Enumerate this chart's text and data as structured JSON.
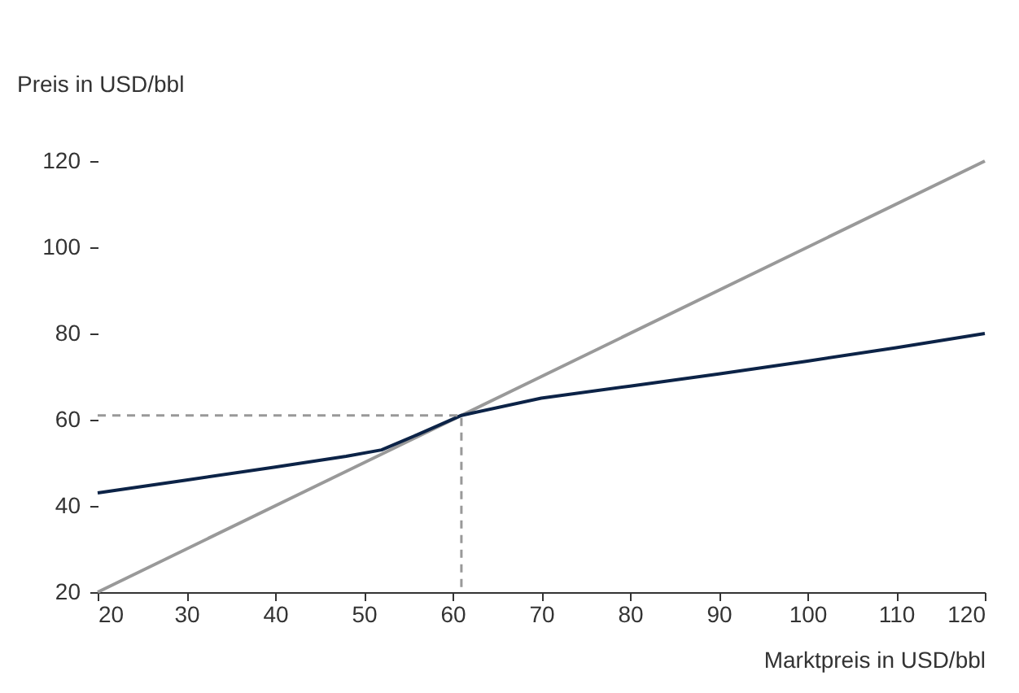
{
  "chart_data": {
    "type": "line",
    "ylabel": "Preis in USD/bbl",
    "xlabel": "Marktpreis in USD/bbl",
    "xlim": [
      20,
      120
    ],
    "xticks": [
      20,
      30,
      40,
      50,
      60,
      70,
      80,
      90,
      100,
      110,
      120
    ],
    "ylim": [
      20,
      120
    ],
    "yticks": [
      20,
      40,
      60,
      80,
      100,
      120
    ],
    "grid": false,
    "series": [
      {
        "color": "#999999",
        "x": [
          20,
          120
        ],
        "values": [
          20,
          120
        ]
      },
      {
        "color": "#0c2347",
        "x": [
          20,
          30,
          40,
          48,
          52,
          56,
          61,
          70,
          80,
          90,
          100,
          110,
          120
        ],
        "values": [
          43,
          46,
          49,
          51.5,
          53,
          56.5,
          61,
          65,
          67.8,
          70.6,
          73.6,
          76.7,
          80
        ]
      },
      {
        "color": "#999999",
        "line_style": "dashed",
        "x": [
          20,
          61,
          61
        ],
        "values": [
          61,
          61,
          20
        ]
      }
    ]
  }
}
